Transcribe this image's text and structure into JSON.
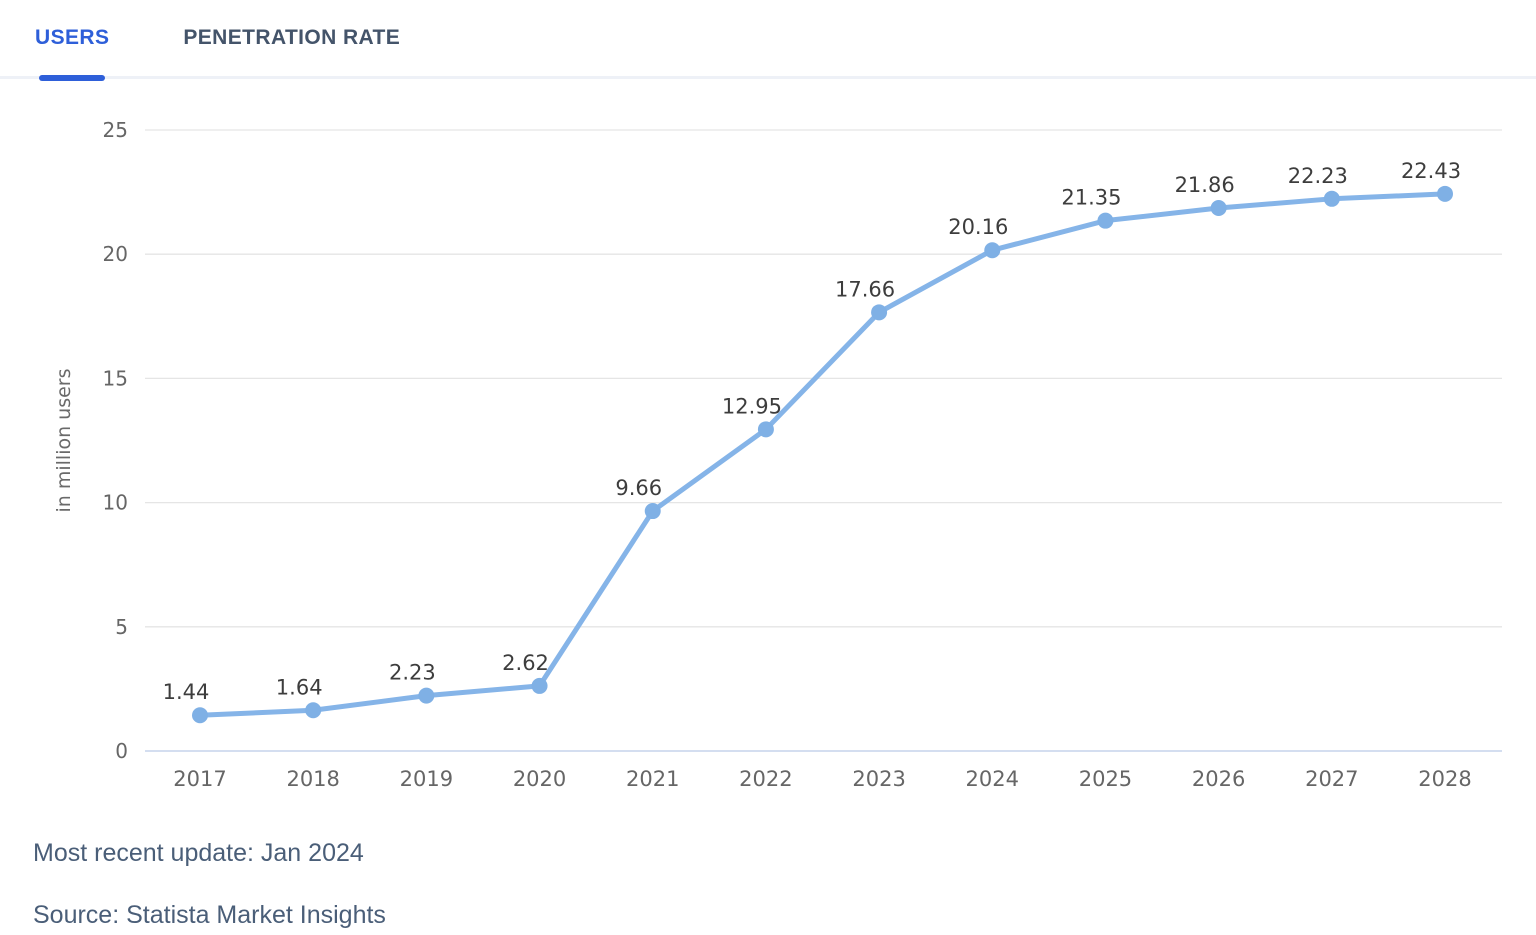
{
  "tabs": {
    "users": {
      "label": "USERS",
      "active": true
    },
    "penetration": {
      "label": "PENETRATION RATE",
      "active": false
    }
  },
  "footer": {
    "most_recent_update": "Most recent update: Jan 2024",
    "source": "Source: Statista Market Insights"
  },
  "chart_data": {
    "type": "line",
    "title": "",
    "xlabel": "",
    "ylabel": "in million users",
    "x": [
      "2017",
      "2018",
      "2019",
      "2020",
      "2021",
      "2022",
      "2023",
      "2024",
      "2025",
      "2026",
      "2027",
      "2028"
    ],
    "series": [
      {
        "name": "Users",
        "values": [
          1.44,
          1.64,
          2.23,
          2.62,
          9.66,
          12.95,
          17.66,
          20.16,
          21.35,
          21.86,
          22.23,
          22.43
        ]
      }
    ],
    "data_labels": [
      "1.44",
      "1.64",
      "2.23",
      "2.62",
      "9.66",
      "12.95",
      "17.66",
      "20.16",
      "21.35",
      "21.86",
      "22.23",
      "22.43"
    ],
    "ylim": [
      0,
      25
    ],
    "yticks": [
      0,
      5,
      10,
      15,
      20,
      25
    ],
    "grid": true,
    "legend": "none",
    "colors": {
      "line": "#85b4e8",
      "marker": "#7fb0e5",
      "grid": "#e5e5e5",
      "zero_line": "#c6d3eb",
      "tick_text": "#666666",
      "data_label_text": "#3d3d3d",
      "axis_title_text": "#6a6a6a"
    }
  },
  "theme": {
    "accent": "#2e5fd9",
    "tab_inactive": "#44546a",
    "divider": "#eef1f7",
    "footer_text": "#4a5e78"
  }
}
